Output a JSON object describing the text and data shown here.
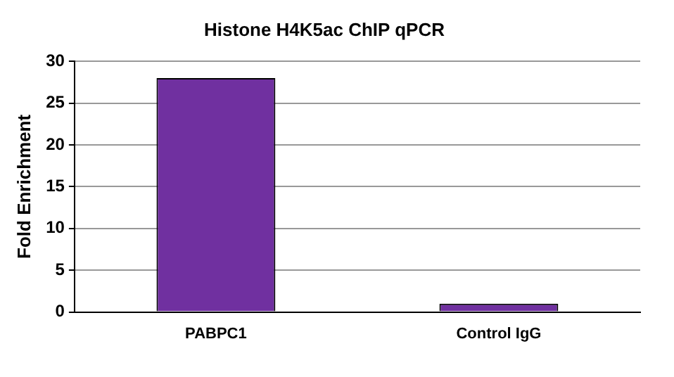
{
  "chart_data": {
    "type": "bar",
    "title": "Histone H4K5ac ChIP qPCR",
    "ylabel": "Fold Enrichment",
    "categories": [
      "PABPC1",
      "Control IgG"
    ],
    "values": [
      28,
      1
    ],
    "color": "#7030a0",
    "ylim": [
      0,
      30
    ],
    "yticks": [
      0,
      5,
      10,
      15,
      20,
      25,
      30
    ],
    "grid": "y"
  }
}
